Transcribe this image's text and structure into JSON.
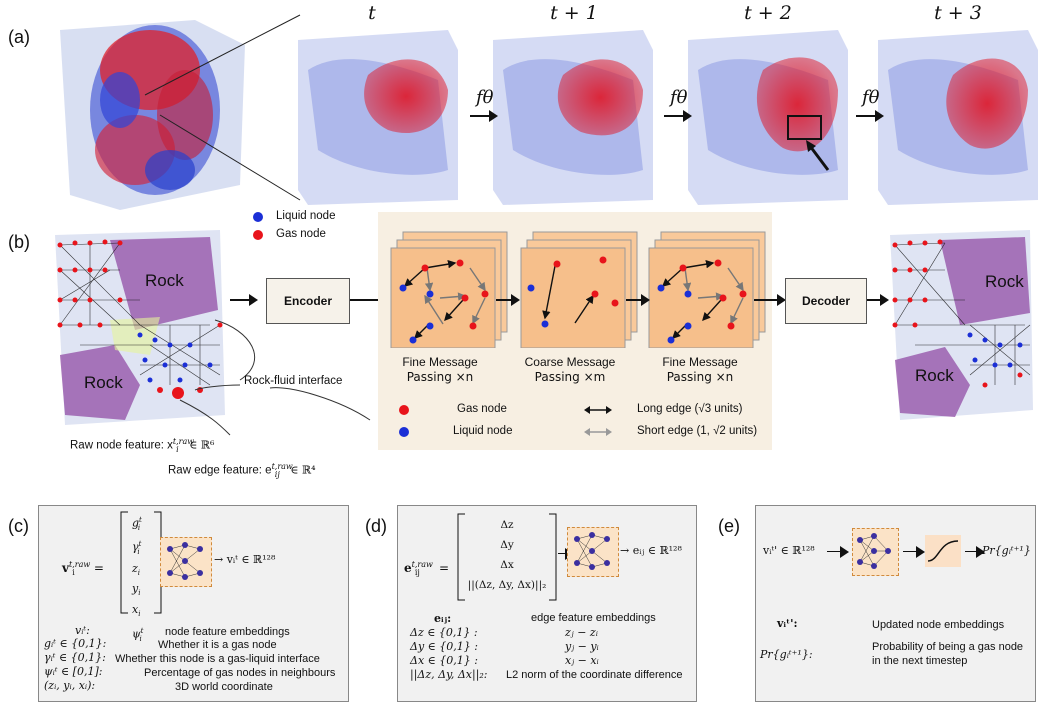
{
  "panel_labels": {
    "a": "(a)",
    "b": "(b)",
    "c": "(c)",
    "d": "(d)",
    "e": "(e)"
  },
  "time_labels": [
    "t",
    "t + 1",
    "t + 2",
    "t + 3"
  ],
  "transition_label": "fθ",
  "legend_top": {
    "liquid": "Liquid node",
    "gas": "Gas node"
  },
  "rock_label": "Rock",
  "encoder_label": "Encoder",
  "decoder_label": "Decoder",
  "rock_fluid_interface": "Rock-fluid interface",
  "raw_node_feature": "Raw node feature: x",
  "raw_node_feature_sup": "t,raw",
  "raw_node_feature_sub": "i",
  "raw_node_feature_space": "∈ ℝ⁶",
  "raw_edge_feature": "Raw edge feature: e",
  "raw_edge_feature_sup": "t,raw",
  "raw_edge_feature_sub": "ij",
  "raw_edge_feature_space": "∈ ℝ⁴",
  "mp_captions": [
    {
      "line1": "Fine Message",
      "line2": "Passing ×n"
    },
    {
      "line1": "Coarse Message",
      "line2": "Passing ×m"
    },
    {
      "line1": "Fine Message",
      "line2": "Passing ×n"
    }
  ],
  "mp_legend": {
    "gas": "Gas node",
    "liquid": "Liquid node",
    "long_edge": "Long edge (√3 units)",
    "short_edge": "Short edge (1, √2 units)"
  },
  "panel_c": {
    "lhs": "v",
    "lhs_sup": "t,raw",
    "lhs_sub": "i",
    "vector": [
      "g",
      "γ",
      "z",
      "y",
      "x",
      "ψ"
    ],
    "vector_sup": [
      "t",
      "t",
      "",
      "",
      "",
      "t"
    ],
    "vector_sub": [
      "i",
      "i",
      "i",
      "i",
      "i",
      "i"
    ],
    "output": "→ vᵢᵗ ∈ ℝ¹²⁸",
    "defs": [
      {
        "sym": "vᵢᵗ:",
        "text": "node feature embeddings"
      },
      {
        "sym": "gᵢᵗ ∈ {0,1}:",
        "text": "Whether it is a gas node"
      },
      {
        "sym": "γᵢᵗ ∈ {0,1}:",
        "text": "Whether this node is a gas-liquid interface"
      },
      {
        "sym": "ψᵢᵗ ∈ [0,1]:",
        "text": "Percentage of gas nodes in neighbours"
      },
      {
        "sym": "(zᵢ, yᵢ, xᵢ):",
        "text": "3D world coordinate"
      }
    ]
  },
  "panel_d": {
    "lhs": "e",
    "lhs_sup": "t,raw",
    "lhs_sub": "ij",
    "vector": [
      "Δz",
      "Δy",
      "Δx",
      "||(Δz, Δy, Δx)||₂"
    ],
    "output": "→ eᵢⱼ ∈ ℝ¹²⁸",
    "defs": [
      {
        "sym": "eᵢⱼ:",
        "text": "edge feature embeddings"
      },
      {
        "sym": "Δz ∈ {0,1} :",
        "text": "zⱼ − zᵢ"
      },
      {
        "sym": "Δy ∈ {0,1} :",
        "text": "yⱼ − yᵢ"
      },
      {
        "sym": "Δx ∈ {0,1} :",
        "text": "xⱼ − xᵢ"
      },
      {
        "sym": "||Δz, Δy, Δx||₂:",
        "text": "L2 norm of the coordinate difference"
      }
    ]
  },
  "panel_e": {
    "input": "vᵢᵗ' ∈ ℝ¹²⁸",
    "output": "Pr{gᵢᵗ⁺¹}",
    "defs": [
      {
        "sym": "vᵢᵗ':",
        "text": "Updated node embeddings"
      },
      {
        "sym": "Pr{gᵢᵗ⁺¹}:",
        "text": "Probability of being a gas node"
      },
      {
        "sym": "",
        "text": "in the next timestep"
      }
    ]
  },
  "colors": {
    "gas": "#e8141b",
    "liquid": "#1b2fd6",
    "rock": "#9b5fae",
    "beige": "#f7efe2",
    "nn_box": "#fbe3c7"
  }
}
